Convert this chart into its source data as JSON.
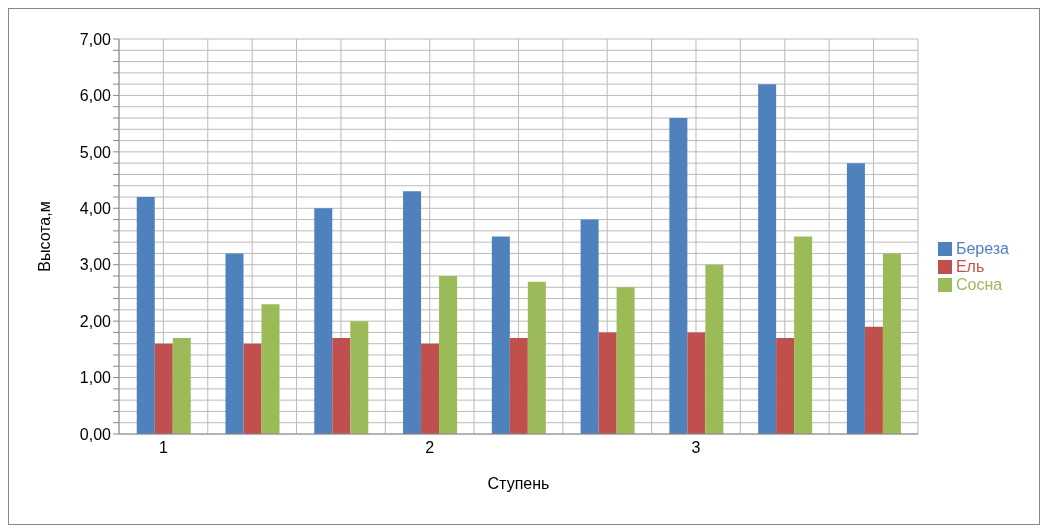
{
  "chart_data": {
    "type": "bar",
    "xlabel": "Ступень",
    "ylabel": "Высота,м",
    "categories": [
      "1",
      null,
      null,
      "2",
      null,
      null,
      "3",
      null,
      null
    ],
    "series": [
      {
        "name": "Береза",
        "color": "#4f81bd",
        "values": [
          4.2,
          3.2,
          4.0,
          4.3,
          3.5,
          3.8,
          5.6,
          6.2,
          4.8
        ]
      },
      {
        "name": "Ель",
        "color": "#c0504d",
        "values": [
          1.6,
          1.6,
          1.7,
          1.6,
          1.7,
          1.8,
          1.8,
          1.7,
          1.9
        ]
      },
      {
        "name": "Сосна",
        "color": "#9bbb59",
        "values": [
          1.7,
          2.3,
          2.0,
          2.8,
          2.7,
          2.6,
          3.0,
          3.5,
          3.2
        ]
      }
    ],
    "ylim": [
      0,
      7
    ],
    "yticks": [
      {
        "value": 0,
        "label": "0,00"
      },
      {
        "value": 0.2,
        "label": null
      },
      {
        "value": 0.4,
        "label": null
      },
      {
        "value": 0.6,
        "label": null
      },
      {
        "value": 0.8,
        "label": null
      },
      {
        "value": 1,
        "label": "1,00"
      },
      {
        "value": 1.2,
        "label": null
      },
      {
        "value": 1.4,
        "label": null
      },
      {
        "value": 1.6,
        "label": null
      },
      {
        "value": 1.8,
        "label": null
      },
      {
        "value": 2,
        "label": "2,00"
      },
      {
        "value": 2.2,
        "label": null
      },
      {
        "value": 2.4,
        "label": null
      },
      {
        "value": 2.6,
        "label": null
      },
      {
        "value": 2.8,
        "label": null
      },
      {
        "value": 3,
        "label": "3,00"
      },
      {
        "value": 3.2,
        "label": null
      },
      {
        "value": 3.4,
        "label": null
      },
      {
        "value": 3.6,
        "label": null
      },
      {
        "value": 3.8,
        "label": null
      },
      {
        "value": 4,
        "label": "4,00"
      },
      {
        "value": 4.2,
        "label": null
      },
      {
        "value": 4.4,
        "label": null
      },
      {
        "value": 4.6,
        "label": null
      },
      {
        "value": 4.8,
        "label": null
      },
      {
        "value": 5,
        "label": "5,00"
      },
      {
        "value": 5.2,
        "label": null
      },
      {
        "value": 5.4,
        "label": null
      },
      {
        "value": 5.6,
        "label": null
      },
      {
        "value": 5.8,
        "label": null
      },
      {
        "value": 6,
        "label": "6,00"
      },
      {
        "value": 6.2,
        "label": null
      },
      {
        "value": 6.4,
        "label": null
      },
      {
        "value": 6.6,
        "label": null
      },
      {
        "value": 6.8,
        "label": null
      },
      {
        "value": 7,
        "label": "7,00"
      }
    ],
    "grid": true,
    "legend": "right"
  }
}
